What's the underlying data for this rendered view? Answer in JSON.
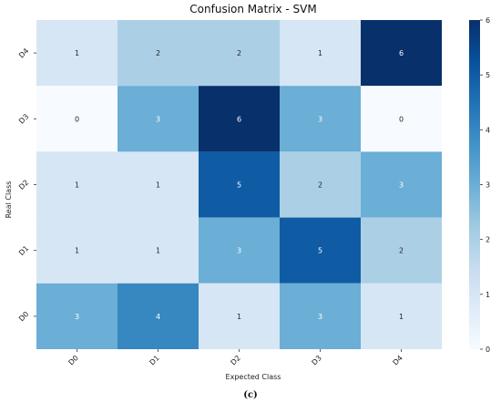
{
  "chart_data": {
    "type": "heatmap",
    "title": "Confusion Matrix - SVM",
    "xlabel": "Expected Class",
    "ylabel": "Real Class",
    "x_categories": [
      "D0",
      "D1",
      "D2",
      "D3",
      "D4"
    ],
    "y_categories": [
      "D4",
      "D3",
      "D2",
      "D1",
      "D0"
    ],
    "values": [
      [
        1,
        2,
        2,
        1,
        6
      ],
      [
        0,
        3,
        6,
        3,
        0
      ],
      [
        1,
        1,
        5,
        2,
        3
      ],
      [
        1,
        1,
        3,
        5,
        2
      ],
      [
        3,
        4,
        1,
        3,
        1
      ]
    ],
    "colorbar": {
      "min": 0,
      "max": 6,
      "ticks": [
        0,
        1,
        2,
        3,
        4,
        5,
        6
      ],
      "colormap": "Blues"
    }
  },
  "caption": "(c)"
}
